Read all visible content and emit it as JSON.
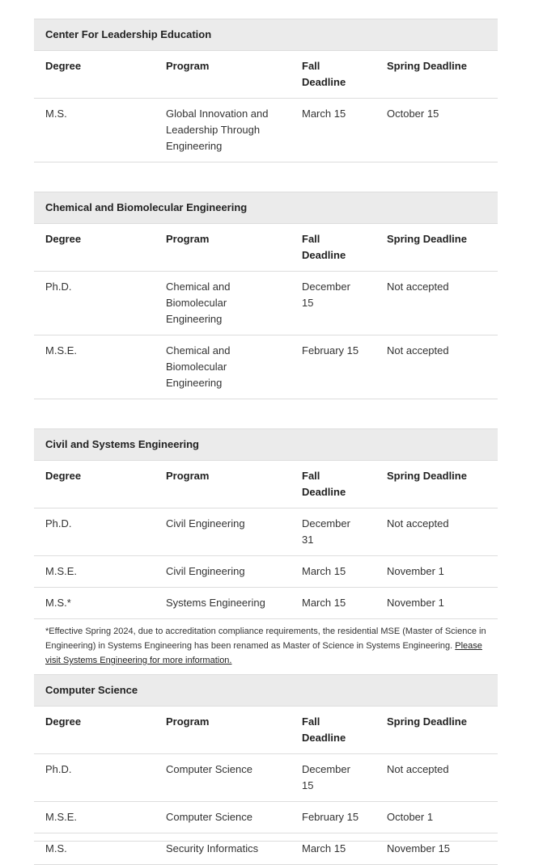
{
  "headers": {
    "degree": "Degree",
    "program": "Program",
    "fall": "Fall Deadline",
    "spring": "Spring Deadline"
  },
  "sections": [
    {
      "title": "Center For Leadership Education",
      "rows": [
        [
          "M.S.",
          "Global Innovation and Leadership Through Engineering",
          "March 15",
          "October 15"
        ]
      ]
    },
    {
      "title": "Chemical and Biomolecular Engineering",
      "rows": [
        [
          "Ph.D.",
          "Chemical and Biomolecular Engineering",
          "December 15",
          "Not accepted"
        ],
        [
          "M.S.E.",
          "Chemical and Biomolecular Engineering",
          "February 15",
          "Not accepted"
        ]
      ]
    },
    {
      "title": "Civil and Systems Engineering",
      "rows": [
        [
          "Ph.D.",
          "Civil Engineering",
          "December 31",
          "Not accepted"
        ],
        [
          "M.S.E.",
          "Civil Engineering",
          "March 15",
          "November 1"
        ],
        [
          "M.S.*",
          "Systems Engineering",
          "March 15",
          "November 1"
        ]
      ],
      "note": "*Effective Spring 2024, due to accreditation compliance requirements, the residential MSE (Master of Science in Engineering) in Systems Engineering has been renamed as Master of Science in Systems Engineering.",
      "note_link": "Please visit Systems Engineering for more information."
    },
    {
      "title": "Computer Science",
      "rows": [
        [
          "Ph.D.",
          "Computer Science",
          "December 15",
          "Not accepted"
        ],
        [
          "M.S.E.",
          "Computer Science",
          "February 15",
          "October 1"
        ],
        [
          "M.S.",
          "Security Informatics",
          "March 15",
          "November 15"
        ]
      ]
    }
  ]
}
